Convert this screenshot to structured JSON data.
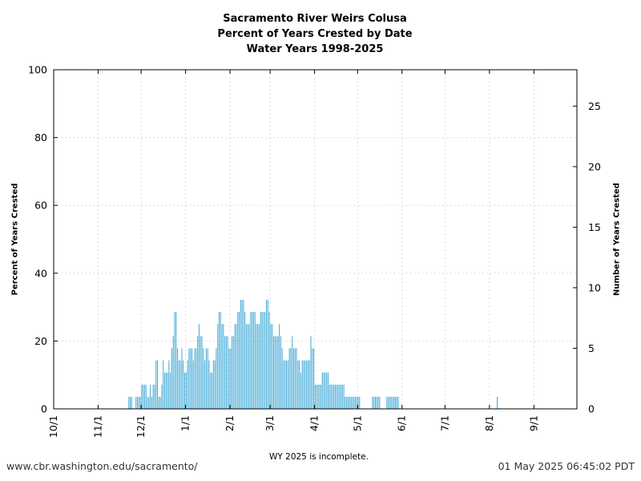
{
  "chart_data": {
    "type": "bar",
    "title": [
      "Sacramento River Weirs Colusa",
      "Percent of Years Crested by Date",
      "Water Years 1998-2025"
    ],
    "ylabel": "Percent of Years Crested",
    "y2label": "Number of Years Crested",
    "ylim": [
      0,
      100
    ],
    "y2lim": [
      0,
      28
    ],
    "yticks": [
      0,
      20,
      40,
      60,
      80,
      100
    ],
    "y2ticks": [
      0,
      5,
      10,
      15,
      20,
      25
    ],
    "xticks": [
      "10/1",
      "11/1",
      "12/1",
      "1/1",
      "2/1",
      "3/1",
      "4/1",
      "5/1",
      "6/1",
      "7/1",
      "8/1",
      "9/1"
    ],
    "xtick_day_offsets": [
      0,
      31,
      61,
      92,
      123,
      151,
      182,
      212,
      243,
      273,
      304,
      335
    ],
    "x_range_days": [
      0,
      365
    ],
    "grid": true,
    "bar_color": "#3aa7d6",
    "series": [
      {
        "values_by_day_offset": [
          [
            52,
            1
          ],
          [
            53,
            1
          ],
          [
            54,
            1
          ],
          [
            57,
            1
          ],
          [
            58,
            1
          ],
          [
            59,
            1
          ],
          [
            60,
            1
          ],
          [
            61,
            2
          ],
          [
            62,
            2
          ],
          [
            63,
            2
          ],
          [
            64,
            2
          ],
          [
            65,
            1
          ],
          [
            66,
            1
          ],
          [
            67,
            2
          ],
          [
            68,
            1
          ],
          [
            69,
            2
          ],
          [
            70,
            2
          ],
          [
            71,
            4
          ],
          [
            72,
            4
          ],
          [
            73,
            1
          ],
          [
            74,
            1
          ],
          [
            75,
            2
          ],
          [
            76,
            4
          ],
          [
            77,
            3
          ],
          [
            78,
            3
          ],
          [
            79,
            3
          ],
          [
            80,
            4
          ],
          [
            81,
            3
          ],
          [
            82,
            5
          ],
          [
            83,
            6
          ],
          [
            84,
            8
          ],
          [
            85,
            8
          ],
          [
            86,
            5
          ],
          [
            87,
            4
          ],
          [
            88,
            4
          ],
          [
            89,
            5
          ],
          [
            90,
            4
          ],
          [
            91,
            3
          ],
          [
            92,
            3
          ],
          [
            93,
            4
          ],
          [
            94,
            5
          ],
          [
            95,
            5
          ],
          [
            96,
            5
          ],
          [
            97,
            4
          ],
          [
            98,
            5
          ],
          [
            99,
            5
          ],
          [
            100,
            6
          ],
          [
            101,
            7
          ],
          [
            102,
            6
          ],
          [
            103,
            6
          ],
          [
            104,
            5
          ],
          [
            105,
            4
          ],
          [
            106,
            5
          ],
          [
            107,
            5
          ],
          [
            108,
            4
          ],
          [
            109,
            3
          ],
          [
            110,
            3
          ],
          [
            111,
            4
          ],
          [
            112,
            4
          ],
          [
            113,
            5
          ],
          [
            114,
            7
          ],
          [
            115,
            8
          ],
          [
            116,
            8
          ],
          [
            117,
            7
          ],
          [
            118,
            7
          ],
          [
            119,
            6
          ],
          [
            120,
            6
          ],
          [
            121,
            6
          ],
          [
            122,
            5
          ],
          [
            123,
            5
          ],
          [
            124,
            6
          ],
          [
            125,
            6
          ],
          [
            126,
            7
          ],
          [
            127,
            7
          ],
          [
            128,
            8
          ],
          [
            129,
            8
          ],
          [
            130,
            9
          ],
          [
            131,
            9
          ],
          [
            132,
            9
          ],
          [
            133,
            8
          ],
          [
            134,
            7
          ],
          [
            135,
            7
          ],
          [
            136,
            7
          ],
          [
            137,
            8
          ],
          [
            138,
            8
          ],
          [
            139,
            8
          ],
          [
            140,
            8
          ],
          [
            141,
            7
          ],
          [
            142,
            7
          ],
          [
            143,
            7
          ],
          [
            144,
            8
          ],
          [
            145,
            8
          ],
          [
            146,
            8
          ],
          [
            147,
            8
          ],
          [
            148,
            9
          ],
          [
            149,
            9
          ],
          [
            150,
            8
          ],
          [
            151,
            7
          ],
          [
            152,
            7
          ],
          [
            153,
            6
          ],
          [
            154,
            6
          ],
          [
            155,
            6
          ],
          [
            156,
            6
          ],
          [
            157,
            7
          ],
          [
            158,
            6
          ],
          [
            159,
            5
          ],
          [
            160,
            4
          ],
          [
            161,
            4
          ],
          [
            162,
            4
          ],
          [
            163,
            4
          ],
          [
            164,
            5
          ],
          [
            165,
            5
          ],
          [
            166,
            6
          ],
          [
            167,
            5
          ],
          [
            168,
            5
          ],
          [
            169,
            5
          ],
          [
            170,
            4
          ],
          [
            171,
            4
          ],
          [
            172,
            3
          ],
          [
            173,
            4
          ],
          [
            174,
            4
          ],
          [
            175,
            4
          ],
          [
            176,
            4
          ],
          [
            177,
            4
          ],
          [
            178,
            4
          ],
          [
            179,
            6
          ],
          [
            180,
            5
          ],
          [
            181,
            5
          ],
          [
            182,
            2
          ],
          [
            183,
            2
          ],
          [
            184,
            2
          ],
          [
            185,
            2
          ],
          [
            186,
            2
          ],
          [
            187,
            3
          ],
          [
            188,
            3
          ],
          [
            189,
            3
          ],
          [
            190,
            3
          ],
          [
            191,
            3
          ],
          [
            192,
            2
          ],
          [
            193,
            2
          ],
          [
            194,
            2
          ],
          [
            195,
            2
          ],
          [
            196,
            2
          ],
          [
            197,
            2
          ],
          [
            198,
            2
          ],
          [
            199,
            2
          ],
          [
            200,
            2
          ],
          [
            201,
            2
          ],
          [
            202,
            2
          ],
          [
            203,
            1
          ],
          [
            204,
            1
          ],
          [
            205,
            1
          ],
          [
            206,
            1
          ],
          [
            207,
            1
          ],
          [
            208,
            1
          ],
          [
            209,
            1
          ],
          [
            210,
            1
          ],
          [
            211,
            1
          ],
          [
            212,
            1
          ],
          [
            213,
            1
          ],
          [
            222,
            1
          ],
          [
            223,
            1
          ],
          [
            224,
            1
          ],
          [
            225,
            1
          ],
          [
            226,
            1
          ],
          [
            227,
            1
          ],
          [
            232,
            1
          ],
          [
            233,
            1
          ],
          [
            234,
            1
          ],
          [
            235,
            1
          ],
          [
            236,
            1
          ],
          [
            237,
            1
          ],
          [
            238,
            1
          ],
          [
            239,
            1
          ],
          [
            240,
            1
          ],
          [
            309,
            1
          ]
        ]
      }
    ]
  },
  "footer": {
    "source_url": "www.cbr.washington.edu/sacramento/",
    "timestamp": "01 May 2025 06:45:02 PDT",
    "note": "WY 2025 is incomplete."
  }
}
